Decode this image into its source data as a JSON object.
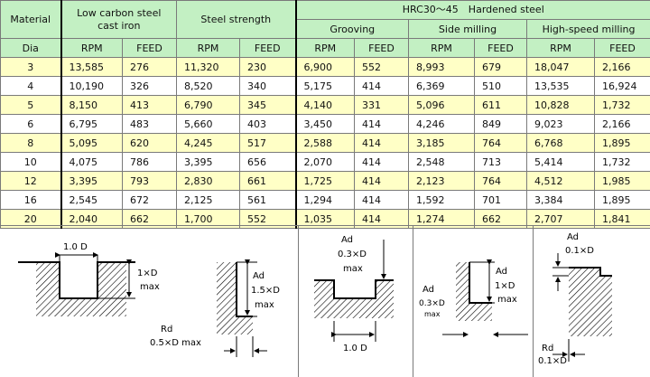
{
  "headers": {
    "material": "Material",
    "group_low_carbon": "Low carbon steel cast iron",
    "group_low_carbon_line1": "Low carbon steel",
    "group_low_carbon_line2": "cast iron",
    "group_steel_strength": "Steel strength",
    "group_hardened": "HRC30～45　Hardened steel",
    "sub_grooving": "Grooving",
    "sub_side_milling": "Side milling",
    "sub_high_speed": "High-speed milling",
    "dia": "Dia",
    "rpm": "RPM",
    "feed": "FEED"
  },
  "rows": [
    {
      "dia": "3",
      "v": [
        "13,585",
        "276",
        "11,320",
        "230",
        "6,900",
        "552",
        "8,993",
        "679",
        "18,047",
        "2,166"
      ]
    },
    {
      "dia": "4",
      "v": [
        "10,190",
        "326",
        "8,520",
        "340",
        "5,175",
        "414",
        "6,369",
        "510",
        "13,535",
        "16,924"
      ]
    },
    {
      "dia": "5",
      "v": [
        "8,150",
        "413",
        "6,790",
        "345",
        "4,140",
        "331",
        "5,096",
        "611",
        "10,828",
        "1,732"
      ]
    },
    {
      "dia": "6",
      "v": [
        "6,795",
        "483",
        "5,660",
        "403",
        "3,450",
        "414",
        "4,246",
        "849",
        "9,023",
        "2,166"
      ]
    },
    {
      "dia": "8",
      "v": [
        "5,095",
        "620",
        "4,245",
        "517",
        "2,588",
        "414",
        "3,185",
        "764",
        "6,768",
        "1,895"
      ]
    },
    {
      "dia": "10",
      "v": [
        "4,075",
        "786",
        "3,395",
        "656",
        "2,070",
        "414",
        "2,548",
        "713",
        "5,414",
        "1,732"
      ]
    },
    {
      "dia": "12",
      "v": [
        "3,395",
        "793",
        "2,830",
        "661",
        "1,725",
        "414",
        "2,123",
        "764",
        "4,512",
        "1,985"
      ]
    },
    {
      "dia": "16",
      "v": [
        "2,545",
        "672",
        "2,125",
        "561",
        "1,294",
        "414",
        "1,592",
        "701",
        "3,384",
        "1,895"
      ]
    },
    {
      "dia": "20",
      "v": [
        "2,040",
        "662",
        "1,700",
        "552",
        "1,035",
        "414",
        "1,274",
        "662",
        "2,707",
        "1,841"
      ]
    }
  ],
  "diagrams": {
    "slot_width": "1.0 D",
    "slot_depth_1": "1×D",
    "slot_depth_2": "max",
    "step_ad": "Ad",
    "step_ad_val": "1.5×D",
    "step_ad_max": "max",
    "step_rd": "Rd",
    "step_rd_val": "0.5×D max",
    "groove_ad": "Ad",
    "groove_ad_val": "0.3×D",
    "groove_ad_max": "max",
    "groove_width": "1.0 D",
    "side_ad": "Ad",
    "side_ad_val": "1×D",
    "side_ad_max": "max",
    "side_rd_ad": "Ad",
    "side_rd_val": "0.3×D",
    "side_rd_max": "max",
    "hs_ad": "Ad",
    "hs_ad_val": "0.1×D",
    "hs_rd": "Rd",
    "hs_rd_val": "0.1×D"
  }
}
